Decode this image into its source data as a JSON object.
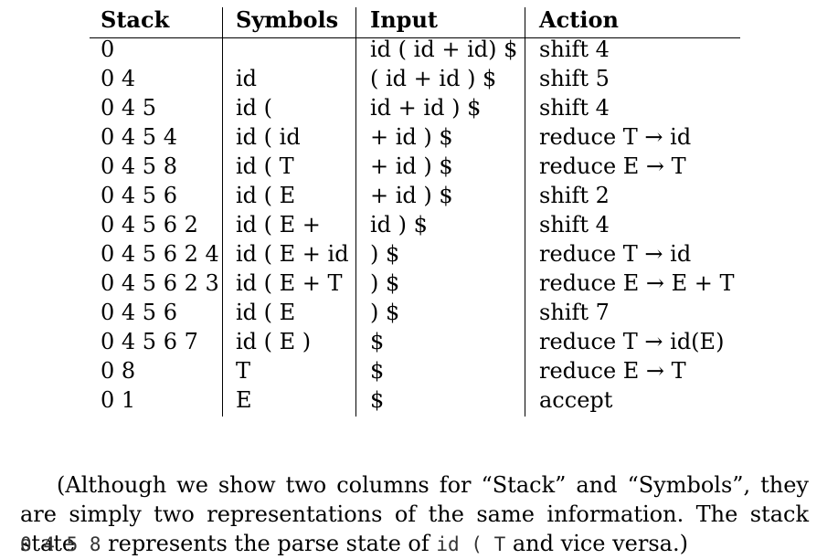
{
  "table": {
    "headers": {
      "stack": "Stack",
      "symbols": "Symbols",
      "input": "Input",
      "action": "Action"
    },
    "rows": [
      {
        "stack": "0",
        "symbols": "",
        "input": "id ( id + id) $",
        "action": "shift 4"
      },
      {
        "stack": "0 4",
        "symbols": "id",
        "input": "( id + id ) $",
        "action": "shift 5"
      },
      {
        "stack": "0 4 5",
        "symbols": "id (",
        "input": "id + id ) $",
        "action": "shift 4"
      },
      {
        "stack": "0 4 5 4",
        "symbols": "id ( id",
        "input": "+ id ) $",
        "action": "reduce T → id"
      },
      {
        "stack": "0 4 5 8",
        "symbols": "id ( T",
        "input": "+ id ) $",
        "action": "reduce E → T"
      },
      {
        "stack": "0 4 5 6",
        "symbols": "id ( E",
        "input": "+ id ) $",
        "action": "shift 2"
      },
      {
        "stack": "0 4 5 6 2",
        "symbols": "id ( E +",
        "input": "id ) $",
        "action": "shift 4"
      },
      {
        "stack": "0 4 5 6 2 4",
        "symbols": "id ( E + id",
        "input": ") $",
        "action": "reduce T → id"
      },
      {
        "stack": "0 4 5 6 2 3",
        "symbols": "id ( E + T",
        "input": ") $",
        "action": "reduce E → E + T"
      },
      {
        "stack": "0 4 5 6",
        "symbols": "id ( E",
        "input": ") $",
        "action": "shift 7"
      },
      {
        "stack": "0 4 5 6 7",
        "symbols": "id ( E )",
        "input": "$",
        "action": "reduce T → id(E)"
      },
      {
        "stack": "0 8",
        "symbols": "T",
        "input": "$",
        "action": "reduce E → T"
      },
      {
        "stack": "0 1",
        "symbols": "E",
        "input": "$",
        "action": "accept"
      }
    ]
  },
  "paragraph": {
    "line1": "(Although we show two columns for “Stack” and “Symbols”, they",
    "line2": "are simply two representations of the same information.  The stack state",
    "code_stack": "0 4 5 8",
    "text_mid": " represents the parse state of ",
    "code_symbols": "id ( T",
    "text_end": " and vice versa.)"
  }
}
